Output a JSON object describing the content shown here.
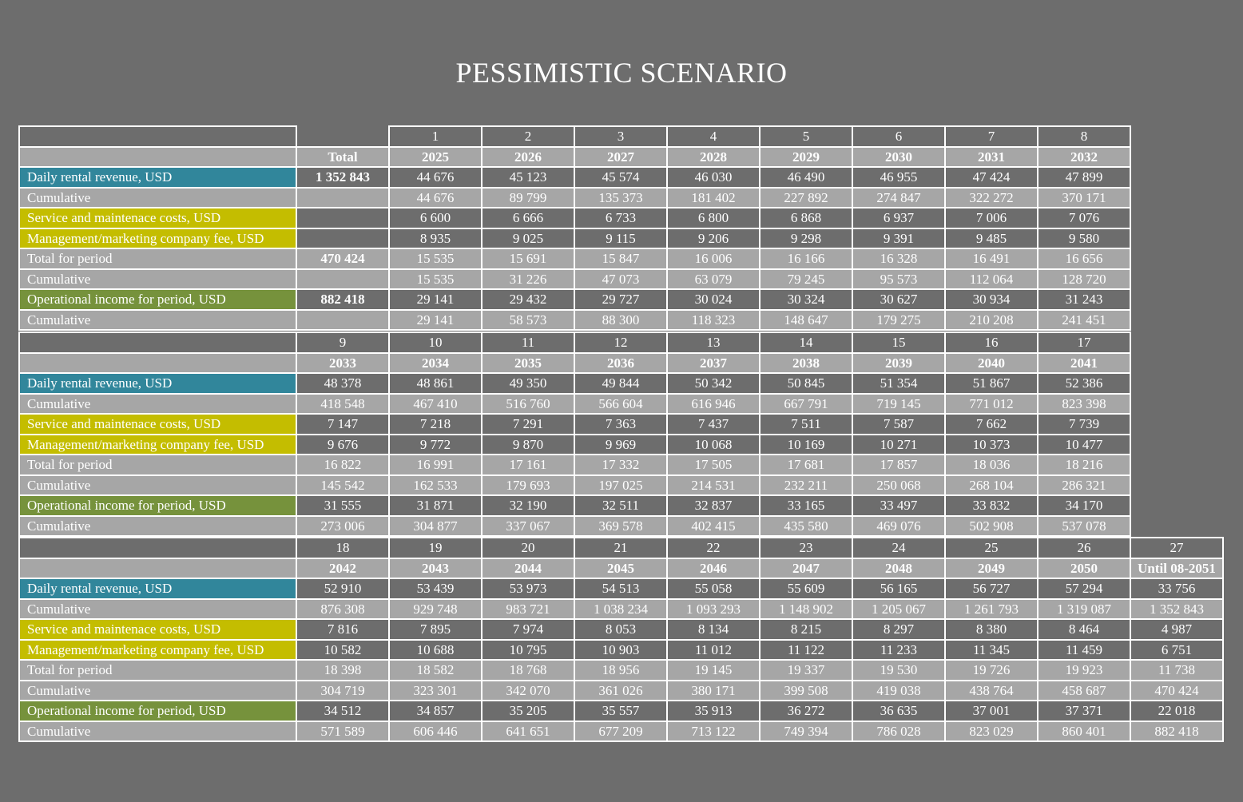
{
  "title": "PESSIMISTIC SCENARIO",
  "colors": {
    "background": "#6d6d6d",
    "light_row": "#a6a6a6",
    "revenue_label": "#31869b",
    "cost_label": "#c4bd00",
    "income_label": "#76923c"
  },
  "row_labels": [
    "Daily rental revenue, USD",
    "Cumulative",
    "Service and maintenace costs, USD",
    "Management/marketing company fee, USD",
    "Total for period",
    "Cumulative",
    "Operational income for period, USD",
    "Cumulative"
  ],
  "tables": [
    {
      "total_header": "Total",
      "periods": [
        "1",
        "2",
        "3",
        "4",
        "5",
        "6",
        "7",
        "8"
      ],
      "years": [
        "2025",
        "2026",
        "2027",
        "2028",
        "2029",
        "2030",
        "2031",
        "2032"
      ],
      "totals": [
        "1 352 843",
        "",
        "",
        "",
        "470 424",
        "",
        "882 418",
        ""
      ],
      "rows": [
        [
          "44 676",
          "45 123",
          "45 574",
          "46 030",
          "46 490",
          "46 955",
          "47 424",
          "47 899"
        ],
        [
          "44 676",
          "89 799",
          "135 373",
          "181 402",
          "227 892",
          "274 847",
          "322 272",
          "370 171"
        ],
        [
          "6 600",
          "6 666",
          "6 733",
          "6 800",
          "6 868",
          "6 937",
          "7 006",
          "7 076"
        ],
        [
          "8 935",
          "9 025",
          "9 115",
          "9 206",
          "9 298",
          "9 391",
          "9 485",
          "9 580"
        ],
        [
          "15 535",
          "15 691",
          "15 847",
          "16 006",
          "16 166",
          "16 328",
          "16 491",
          "16 656"
        ],
        [
          "15 535",
          "31 226",
          "47 073",
          "63 079",
          "79 245",
          "95 573",
          "112 064",
          "128 720"
        ],
        [
          "29 141",
          "29 432",
          "29 727",
          "30 024",
          "30 324",
          "30 627",
          "30 934",
          "31 243"
        ],
        [
          "29 141",
          "58 573",
          "88 300",
          "118 323",
          "148 647",
          "179 275",
          "210 208",
          "241 451"
        ]
      ]
    },
    {
      "periods": [
        "9",
        "10",
        "11",
        "12",
        "13",
        "14",
        "15",
        "16",
        "17"
      ],
      "years": [
        "2033",
        "2034",
        "2035",
        "2036",
        "2037",
        "2038",
        "2039",
        "2040",
        "2041"
      ],
      "rows": [
        [
          "48 378",
          "48 861",
          "49 350",
          "49 844",
          "50 342",
          "50 845",
          "51 354",
          "51 867",
          "52 386"
        ],
        [
          "418 548",
          "467 410",
          "516 760",
          "566 604",
          "616 946",
          "667 791",
          "719 145",
          "771 012",
          "823 398"
        ],
        [
          "7 147",
          "7 218",
          "7 291",
          "7 363",
          "7 437",
          "7 511",
          "7 587",
          "7 662",
          "7 739"
        ],
        [
          "9 676",
          "9 772",
          "9 870",
          "9 969",
          "10 068",
          "10 169",
          "10 271",
          "10 373",
          "10 477"
        ],
        [
          "16 822",
          "16 991",
          "17 161",
          "17 332",
          "17 505",
          "17 681",
          "17 857",
          "18 036",
          "18 216"
        ],
        [
          "145 542",
          "162 533",
          "179 693",
          "197 025",
          "214 531",
          "232 211",
          "250 068",
          "268 104",
          "286 321"
        ],
        [
          "31 555",
          "31 871",
          "32 190",
          "32 511",
          "32 837",
          "33 165",
          "33 497",
          "33 832",
          "34 170"
        ],
        [
          "273 006",
          "304 877",
          "337 067",
          "369 578",
          "402 415",
          "435 580",
          "469 076",
          "502 908",
          "537 078"
        ]
      ]
    },
    {
      "periods": [
        "18",
        "19",
        "20",
        "21",
        "22",
        "23",
        "24",
        "25",
        "26",
        "27"
      ],
      "years": [
        "2042",
        "2043",
        "2044",
        "2045",
        "2046",
        "2047",
        "2048",
        "2049",
        "2050",
        "Until 08-2051"
      ],
      "rows": [
        [
          "52 910",
          "53 439",
          "53 973",
          "54 513",
          "55 058",
          "55 609",
          "56 165",
          "56 727",
          "57 294",
          "33 756"
        ],
        [
          "876 308",
          "929 748",
          "983 721",
          "1 038 234",
          "1 093 293",
          "1 148 902",
          "1 205 067",
          "1 261 793",
          "1 319 087",
          "1 352 843"
        ],
        [
          "7 816",
          "7 895",
          "7 974",
          "8 053",
          "8 134",
          "8 215",
          "8 297",
          "8 380",
          "8 464",
          "4 987"
        ],
        [
          "10 582",
          "10 688",
          "10 795",
          "10 903",
          "11 012",
          "11 122",
          "11 233",
          "11 345",
          "11 459",
          "6 751"
        ],
        [
          "18 398",
          "18 582",
          "18 768",
          "18 956",
          "19 145",
          "19 337",
          "19 530",
          "19 726",
          "19 923",
          "11 738"
        ],
        [
          "304 719",
          "323 301",
          "342 070",
          "361 026",
          "380 171",
          "399 508",
          "419 038",
          "438 764",
          "458 687",
          "470 424"
        ],
        [
          "34 512",
          "34 857",
          "35 205",
          "35 557",
          "35 913",
          "36 272",
          "36 635",
          "37 001",
          "37 371",
          "22 018"
        ],
        [
          "571 589",
          "606 446",
          "641 651",
          "677 209",
          "713 122",
          "749 394",
          "786 028",
          "823 029",
          "860 401",
          "882 418"
        ]
      ]
    }
  ]
}
